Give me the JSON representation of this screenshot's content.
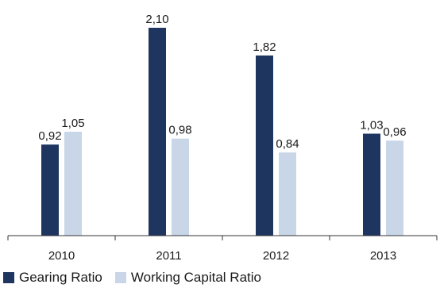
{
  "chart_data": {
    "type": "bar",
    "categories": [
      "2010",
      "2011",
      "2012",
      "2013"
    ],
    "series": [
      {
        "name": "Gearing Ratio",
        "color": "#1e3560",
        "values": [
          0.92,
          2.1,
          1.82,
          1.03
        ],
        "labels": [
          "0,92",
          "2,10",
          "1,82",
          "1,03"
        ]
      },
      {
        "name": "Working Capital Ratio",
        "color": "#c8d6e8",
        "values": [
          1.05,
          0.98,
          0.84,
          0.96
        ],
        "labels": [
          "1,05",
          "0,98",
          "0,84",
          "0,96"
        ]
      }
    ],
    "title": "",
    "xlabel": "",
    "ylabel": "",
    "ylim": [
      0,
      2.1
    ],
    "grid": false,
    "legend_position": "bottom-left"
  }
}
